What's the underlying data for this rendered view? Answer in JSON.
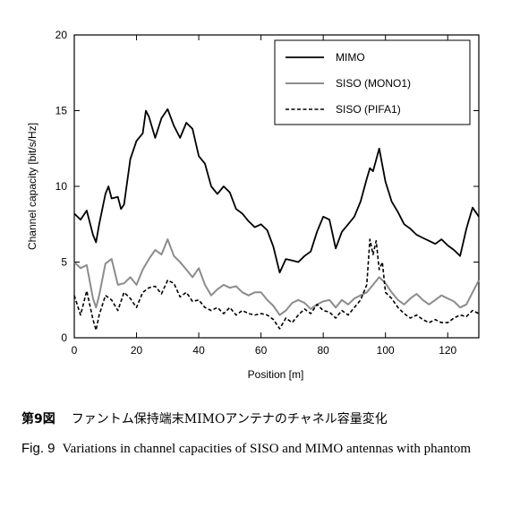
{
  "chart_data": {
    "type": "line",
    "xlabel": "Position [m]",
    "ylabel": "Channel capacity [bit/s/Hz]",
    "xlim": [
      0,
      130
    ],
    "ylim": [
      0,
      20
    ],
    "xticks": [
      "0",
      "20",
      "40",
      "60",
      "80",
      "100",
      "120"
    ],
    "yticks": [
      "0",
      "5",
      "10",
      "15",
      "20"
    ],
    "grid": false,
    "legend_position": "top-right",
    "series": [
      {
        "name": "MIMO",
        "style": "solid-black",
        "color": "#000000",
        "x": [
          0,
          2,
          4,
          6,
          7,
          8,
          10,
          11,
          12,
          14,
          15,
          16,
          18,
          20,
          22,
          23,
          24,
          26,
          28,
          30,
          32,
          34,
          36,
          38,
          40,
          42,
          44,
          46,
          48,
          50,
          52,
          54,
          56,
          58,
          60,
          62,
          64,
          66,
          68,
          70,
          72,
          74,
          76,
          78,
          80,
          82,
          84,
          86,
          88,
          90,
          92,
          94,
          95,
          96,
          98,
          100,
          102,
          104,
          106,
          108,
          110,
          112,
          114,
          116,
          118,
          120,
          122,
          124,
          126,
          128,
          130
        ],
        "values": [
          8.2,
          7.8,
          8.4,
          6.8,
          6.3,
          7.5,
          9.5,
          10.0,
          9.2,
          9.3,
          8.5,
          8.8,
          11.8,
          13.0,
          13.5,
          15.0,
          14.6,
          13.2,
          14.5,
          15.1,
          14.0,
          13.2,
          14.2,
          13.8,
          12.0,
          11.5,
          10.0,
          9.5,
          10.0,
          9.6,
          8.5,
          8.2,
          7.7,
          7.3,
          7.5,
          7.1,
          6.0,
          4.3,
          5.2,
          5.1,
          5.0,
          5.4,
          5.7,
          7.0,
          8.0,
          7.8,
          5.9,
          7.0,
          7.5,
          8.0,
          9.0,
          10.5,
          11.2,
          11.0,
          12.5,
          10.3,
          9.0,
          8.3,
          7.5,
          7.2,
          6.8,
          6.6,
          6.4,
          6.2,
          6.5,
          6.1,
          5.8,
          5.4,
          7.2,
          8.6,
          8.0
        ]
      },
      {
        "name": "SISO (MONO1)",
        "style": "solid-gray",
        "color": "#8c8c8c",
        "x": [
          0,
          2,
          4,
          6,
          7,
          8,
          10,
          12,
          14,
          16,
          18,
          20,
          22,
          24,
          26,
          28,
          30,
          32,
          34,
          36,
          38,
          40,
          42,
          44,
          46,
          48,
          50,
          52,
          54,
          56,
          58,
          60,
          62,
          64,
          66,
          68,
          70,
          72,
          74,
          76,
          78,
          80,
          82,
          84,
          86,
          88,
          90,
          92,
          94,
          96,
          98,
          100,
          102,
          104,
          106,
          108,
          110,
          112,
          114,
          116,
          118,
          120,
          122,
          124,
          126,
          128,
          130
        ],
        "values": [
          5.0,
          4.6,
          4.8,
          2.6,
          2.0,
          2.8,
          4.9,
          5.2,
          3.5,
          3.6,
          4.0,
          3.5,
          4.5,
          5.2,
          5.8,
          5.5,
          6.5,
          5.4,
          5.0,
          4.5,
          4.0,
          4.6,
          3.5,
          2.8,
          3.2,
          3.5,
          3.3,
          3.4,
          3.0,
          2.8,
          3.0,
          3.0,
          2.5,
          2.1,
          1.5,
          1.8,
          2.3,
          2.5,
          2.3,
          1.9,
          2.2,
          2.4,
          2.5,
          2.0,
          2.5,
          2.2,
          2.6,
          2.8,
          3.0,
          3.5,
          4.0,
          3.6,
          3.0,
          2.5,
          2.2,
          2.6,
          2.9,
          2.5,
          2.2,
          2.5,
          2.8,
          2.6,
          2.4,
          2.0,
          2.2,
          3.0,
          3.8
        ]
      },
      {
        "name": "SISO (PIFA1)",
        "style": "dashed-black",
        "color": "#000000",
        "x": [
          0,
          2,
          4,
          6,
          7,
          8,
          10,
          12,
          14,
          16,
          18,
          20,
          22,
          24,
          26,
          28,
          30,
          32,
          34,
          36,
          38,
          40,
          42,
          44,
          46,
          48,
          50,
          52,
          54,
          56,
          58,
          60,
          62,
          64,
          66,
          68,
          70,
          72,
          74,
          76,
          78,
          80,
          82,
          84,
          86,
          88,
          90,
          92,
          94,
          95,
          96,
          97,
          98,
          99,
          100,
          102,
          104,
          106,
          108,
          110,
          112,
          114,
          116,
          118,
          120,
          122,
          124,
          126,
          128,
          130
        ],
        "values": [
          2.8,
          1.5,
          3.1,
          1.2,
          0.5,
          1.5,
          2.8,
          2.5,
          1.8,
          3.0,
          2.6,
          2.0,
          3.0,
          3.3,
          3.4,
          2.9,
          3.8,
          3.6,
          2.7,
          3.0,
          2.4,
          2.5,
          2.0,
          1.8,
          2.0,
          1.6,
          2.0,
          1.5,
          1.8,
          1.6,
          1.5,
          1.6,
          1.5,
          1.2,
          0.6,
          1.3,
          1.0,
          1.5,
          1.9,
          1.6,
          2.2,
          1.8,
          1.7,
          1.3,
          1.8,
          1.5,
          2.0,
          2.5,
          3.5,
          6.5,
          5.5,
          6.4,
          4.5,
          5.0,
          3.0,
          2.6,
          2.0,
          1.6,
          1.3,
          1.5,
          1.2,
          1.0,
          1.2,
          1.0,
          1.0,
          1.3,
          1.5,
          1.4,
          1.8,
          1.6
        ]
      }
    ]
  },
  "caption": {
    "jp_number": "第9図",
    "jp_text": "ファントム保持端末MIMOアンテナのチャネル容量変化",
    "en_number": "Fig. 9",
    "en_text": "Variations in channel capacities of SISO and MIMO antennas with phantom"
  }
}
